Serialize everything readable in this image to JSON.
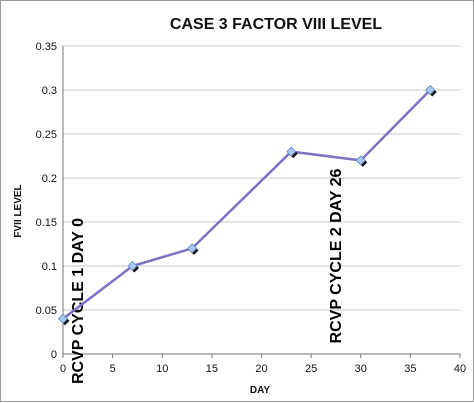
{
  "chart_data": {
    "type": "line",
    "title": "CASE 3 FACTOR VIII LEVEL",
    "xlabel": "DAY",
    "ylabel": "FVII LEVEL",
    "xlim": [
      0,
      40
    ],
    "ylim": [
      0,
      0.35
    ],
    "x_ticks": [
      "0",
      "5",
      "10",
      "15",
      "20",
      "25",
      "30",
      "35",
      "40"
    ],
    "y_ticks": [
      "0",
      "0.05",
      "0.1",
      "0.15",
      "0.2",
      "0.25",
      "0.3",
      "0.35"
    ],
    "grid": "horizontal",
    "series": [
      {
        "x": [
          0,
          7,
          13,
          23,
          30,
          37
        ],
        "y": [
          0.04,
          0.1,
          0.12,
          0.23,
          0.22,
          0.3
        ]
      }
    ],
    "annotations": [
      {
        "text": "RCVP CYCLE 1 DAY 0",
        "x": 0,
        "orientation": "vertical"
      },
      {
        "text": "RCVP CYCLE 2 DAY 26",
        "x": 26,
        "orientation": "vertical"
      }
    ],
    "colors": {
      "line": "#7b72c4",
      "marker": "#a9c8ef",
      "marker_shadow": "#111111",
      "grid": "#c8c8c8"
    }
  }
}
